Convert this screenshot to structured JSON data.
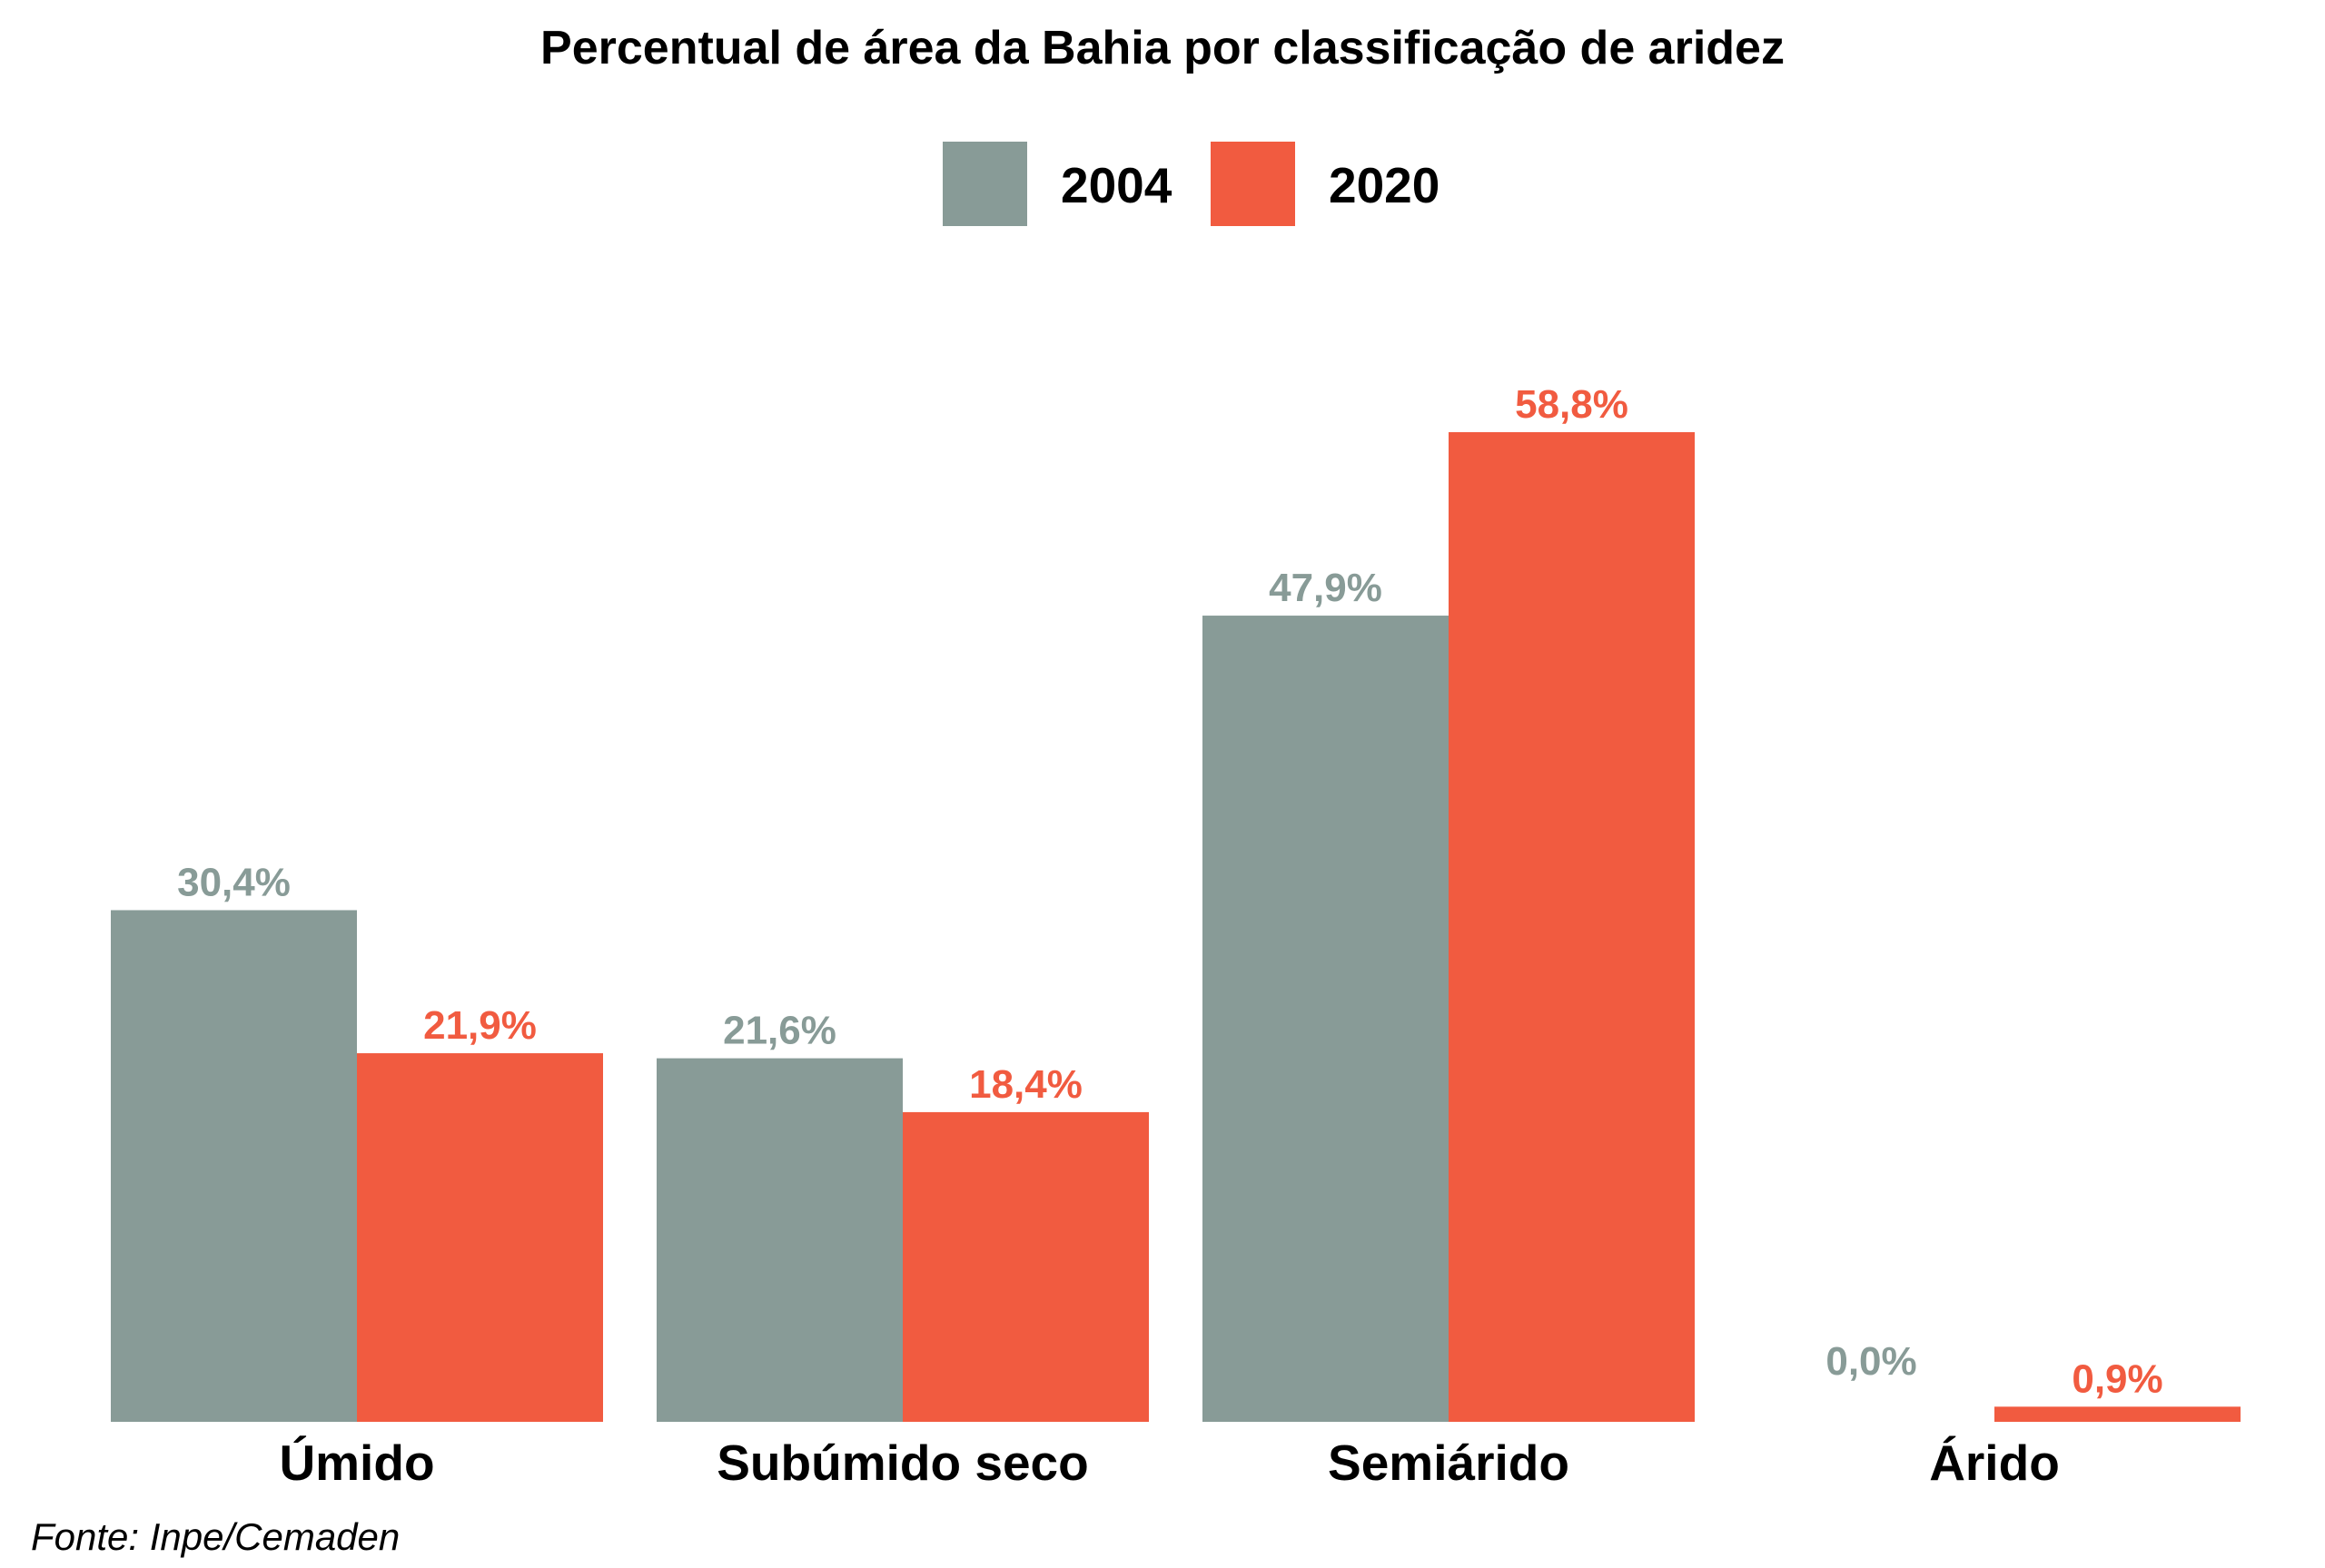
{
  "chart_data": {
    "type": "bar",
    "title": "Percentual de área da Bahia por classificação de aridez",
    "categories": [
      "Úmido",
      "Subúmido seco",
      "Semiárido",
      "Árido"
    ],
    "series": [
      {
        "name": "2004",
        "color": "#889b97",
        "values": [
          30.4,
          21.6,
          47.9,
          0.0
        ],
        "labels": [
          "30,4%",
          "21,6%",
          "47,9%",
          "0,0%"
        ]
      },
      {
        "name": "2020",
        "color": "#f15b40",
        "values": [
          21.9,
          18.4,
          58.8,
          0.9
        ],
        "labels": [
          "21,9%",
          "18,4%",
          "58,8%",
          "0,9%"
        ]
      }
    ],
    "ylim": [
      0,
      58.8
    ],
    "xlabel": "",
    "ylabel": "",
    "legend_position": "top-center",
    "grid": false,
    "source": "Fonte: Inpe/Cemaden"
  }
}
